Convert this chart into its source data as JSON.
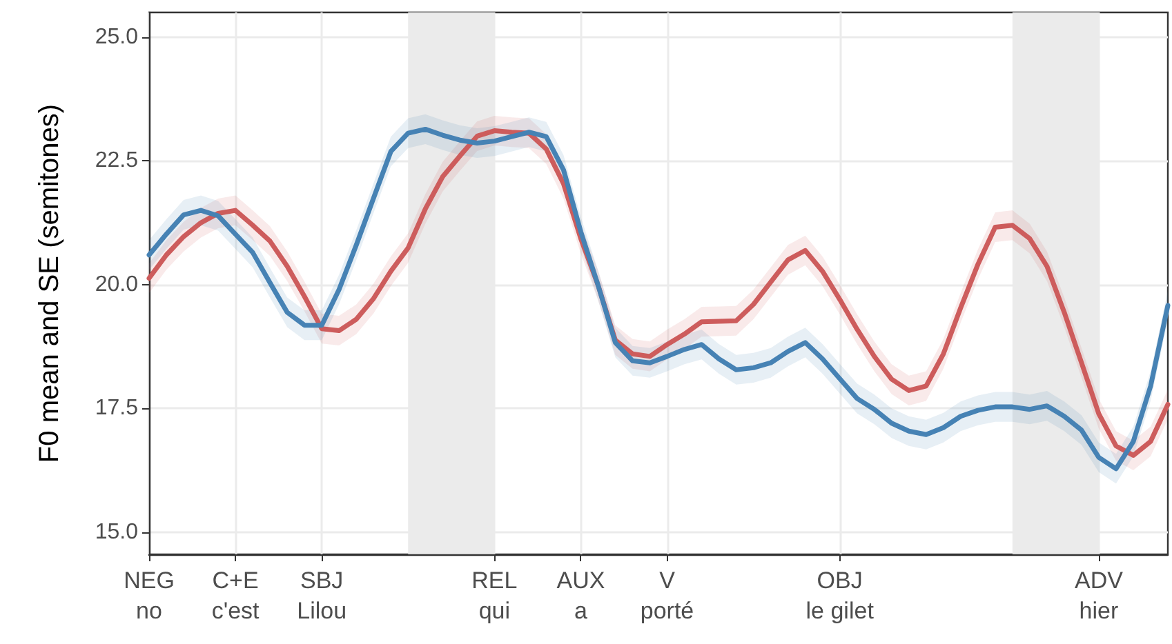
{
  "chart_data": {
    "type": "line",
    "ylabel": "F0 mean and SE (semitones)",
    "categories": [
      "NEG\nno",
      null,
      null,
      null,
      null,
      "C+E\nc'est",
      null,
      null,
      null,
      null,
      "SBJ\nLilou",
      null,
      null,
      null,
      null,
      null,
      null,
      null,
      null,
      null,
      "REL\nqui",
      null,
      null,
      null,
      null,
      "AUX\na",
      null,
      null,
      null,
      null,
      "V\nporté",
      null,
      null,
      null,
      null,
      null,
      null,
      null,
      null,
      null,
      "OBJ\nle gilet",
      null,
      null,
      null,
      null,
      null,
      null,
      null,
      null,
      null,
      null,
      null,
      null,
      null,
      null,
      "ADV\nhier",
      null,
      null,
      null,
      null
    ],
    "ylim": [
      14.55,
      25.5
    ],
    "yticks": [
      {
        "value": 15,
        "label": "15.0"
      },
      {
        "value": 17.5,
        "label": "17.5"
      },
      {
        "value": 20,
        "label": "20.0"
      },
      {
        "value": 22.5,
        "label": "22.5"
      },
      {
        "value": 25,
        "label": "25.0"
      }
    ],
    "grid": true,
    "marker": "none",
    "line_style": "solid",
    "series": [
      {
        "color": "#cd5c5c",
        "values": [
          20.13,
          20.6,
          20.97,
          21.25,
          21.44,
          21.5,
          21.2,
          20.88,
          20.37,
          19.76,
          19.11,
          19.07,
          19.3,
          19.72,
          20.27,
          20.74,
          21.53,
          22.18,
          22.6,
          23.0,
          23.11,
          23.08,
          23.06,
          22.74,
          22.04,
          20.93,
          19.99,
          18.88,
          18.6,
          18.55,
          18.79,
          19.0,
          19.25,
          19.26,
          19.27,
          19.6,
          20.05,
          20.5,
          20.69,
          20.27,
          19.7,
          19.1,
          18.55,
          18.09,
          17.86,
          17.95,
          18.6,
          19.53,
          20.41,
          21.16,
          21.2,
          20.93,
          20.37,
          19.44,
          18.42,
          17.39,
          16.74,
          16.55,
          16.83,
          17.58
        ],
        "upper": [
          20.43,
          20.9,
          21.27,
          21.55,
          21.74,
          21.8,
          21.5,
          21.18,
          20.67,
          20.06,
          19.41,
          19.37,
          19.6,
          20.02,
          20.57,
          21.04,
          21.83,
          22.48,
          22.9,
          23.3,
          23.41,
          23.38,
          23.36,
          23.04,
          22.34,
          21.23,
          20.29,
          19.18,
          18.9,
          18.85,
          19.09,
          19.3,
          19.55,
          19.56,
          19.57,
          19.9,
          20.35,
          20.8,
          20.99,
          20.57,
          20.0,
          19.4,
          18.85,
          18.39,
          18.16,
          18.25,
          18.9,
          19.83,
          20.71,
          21.46,
          21.5,
          21.23,
          20.67,
          19.74,
          18.72,
          17.69,
          17.04,
          16.85,
          17.13,
          17.88
        ],
        "lower": [
          19.83,
          20.3,
          20.67,
          20.95,
          21.14,
          21.2,
          20.9,
          20.58,
          20.07,
          19.46,
          18.81,
          18.77,
          19.0,
          19.42,
          19.97,
          20.44,
          21.23,
          21.88,
          22.3,
          22.7,
          22.81,
          22.78,
          22.76,
          22.44,
          21.74,
          20.63,
          19.69,
          18.58,
          18.3,
          18.25,
          18.49,
          18.7,
          18.95,
          18.96,
          18.97,
          19.3,
          19.75,
          20.2,
          20.39,
          19.97,
          19.4,
          18.8,
          18.25,
          17.79,
          17.56,
          17.65,
          18.3,
          19.23,
          20.11,
          20.86,
          20.9,
          20.63,
          20.07,
          19.14,
          18.12,
          17.09,
          16.44,
          16.25,
          16.53,
          17.28
        ]
      },
      {
        "color": "#4682b4",
        "values": [
          20.6,
          21.02,
          21.41,
          21.5,
          21.39,
          21.02,
          20.65,
          20.04,
          19.44,
          19.18,
          19.18,
          19.9,
          20.8,
          21.75,
          22.69,
          23.06,
          23.14,
          23.02,
          22.92,
          22.86,
          22.9,
          22.99,
          23.08,
          22.99,
          22.32,
          21.07,
          19.99,
          18.83,
          18.46,
          18.42,
          18.55,
          18.69,
          18.79,
          18.5,
          18.28,
          18.32,
          18.42,
          18.65,
          18.83,
          18.5,
          18.1,
          17.7,
          17.48,
          17.2,
          17.04,
          16.97,
          17.11,
          17.34,
          17.46,
          17.53,
          17.53,
          17.48,
          17.55,
          17.34,
          17.06,
          16.51,
          16.28,
          16.83,
          17.95,
          19.58
        ],
        "upper": [
          20.9,
          21.32,
          21.71,
          21.8,
          21.69,
          21.32,
          20.95,
          20.34,
          19.74,
          19.48,
          19.48,
          20.2,
          21.1,
          22.05,
          22.99,
          23.36,
          23.44,
          23.32,
          23.22,
          23.16,
          23.2,
          23.29,
          23.38,
          23.29,
          22.62,
          21.37,
          20.29,
          19.13,
          18.76,
          18.72,
          18.85,
          18.99,
          19.09,
          18.8,
          18.58,
          18.62,
          18.72,
          18.95,
          19.13,
          18.8,
          18.4,
          18.0,
          17.78,
          17.5,
          17.34,
          17.27,
          17.41,
          17.64,
          17.76,
          17.83,
          17.83,
          17.78,
          17.85,
          17.64,
          17.36,
          16.81,
          16.58,
          17.13,
          18.25,
          19.88
        ],
        "lower": [
          20.3,
          20.72,
          21.11,
          21.2,
          21.09,
          20.72,
          20.35,
          19.74,
          19.14,
          18.88,
          18.88,
          19.6,
          20.5,
          21.45,
          22.39,
          22.76,
          22.84,
          22.72,
          22.62,
          22.56,
          22.6,
          22.69,
          22.78,
          22.69,
          22.02,
          20.77,
          19.69,
          18.53,
          18.16,
          18.12,
          18.25,
          18.39,
          18.49,
          18.2,
          17.98,
          18.02,
          18.12,
          18.35,
          18.53,
          18.2,
          17.8,
          17.4,
          17.18,
          16.9,
          16.74,
          16.67,
          16.81,
          17.04,
          17.16,
          17.23,
          17.23,
          17.18,
          17.25,
          17.04,
          16.76,
          16.21,
          15.98,
          16.53,
          17.65,
          19.28
        ]
      }
    ]
  }
}
